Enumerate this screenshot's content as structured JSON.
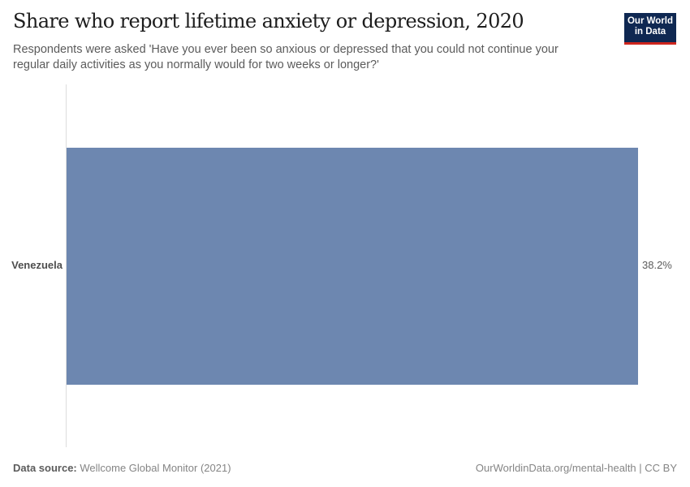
{
  "header": {
    "title": "Share who report lifetime anxiety or depression, 2020",
    "subtitle": "Respondents were asked 'Have you ever been so anxious or depressed that you could not continue your regular daily activities as you normally would for two weeks or longer?'",
    "logo_line1": "Our World",
    "logo_line2": "in Data"
  },
  "footer": {
    "source_label": "Data source:",
    "source_value": " Wellcome Global Monitor (2021)",
    "url": "OurWorldinData.org/mental-health | CC BY"
  },
  "colors": {
    "bar": "#6d87b0",
    "logo_bg": "#0f2852",
    "logo_accent": "#ce261e"
  },
  "chart_data": {
    "type": "bar",
    "orientation": "horizontal",
    "title": "Share who report lifetime anxiety or depression, 2020",
    "subtitle": "Respondents were asked 'Have you ever been so anxious or depressed that you could not continue your regular daily activities as you normally would for two weeks or longer?'",
    "categories": [
      "Venezuela"
    ],
    "values": [
      38.2
    ],
    "value_labels": [
      "38.2%"
    ],
    "unit": "%",
    "xlabel": "",
    "ylabel": "",
    "xlim": [
      0,
      38.2
    ],
    "grid": false,
    "legend": "none",
    "source": "Wellcome Global Monitor (2021)"
  }
}
